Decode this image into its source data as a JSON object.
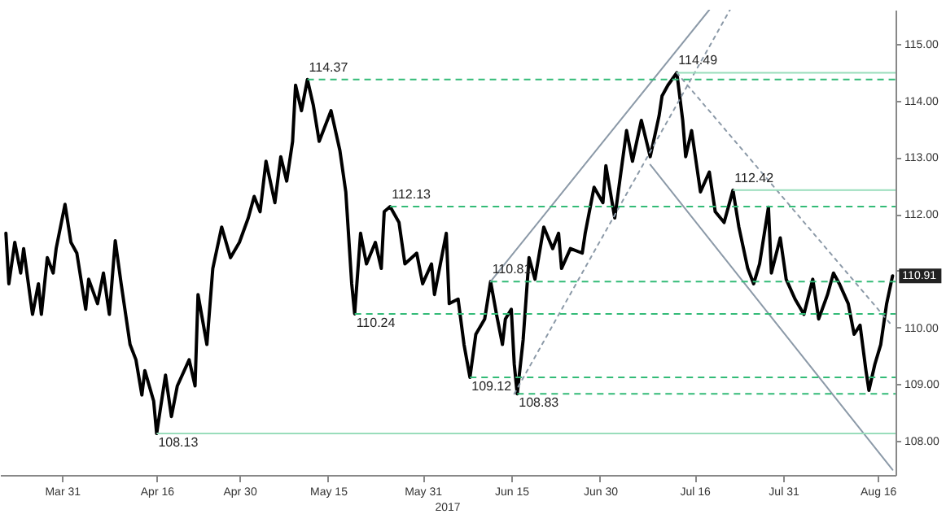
{
  "chart_data": {
    "type": "line",
    "x": [
      "2017-03-21T12:00",
      "2017-03-22",
      "2017-03-23",
      "2017-03-24",
      "2017-03-24T12:00",
      "2017-03-26",
      "2017-03-27",
      "2017-03-27T12:00",
      "2017-03-28T12:00",
      "2017-03-29T12:00",
      "2017-03-30",
      "2017-03-31T12:00",
      "2017-04-01T12:00",
      "2017-04-02T12:00",
      "2017-04-04",
      "2017-04-04T12:00",
      "2017-04-06",
      "2017-04-07",
      "2017-04-08",
      "2017-04-09",
      "2017-04-10",
      "2017-04-11T12:00",
      "2017-04-12T12:00",
      "2017-04-13T12:00",
      "2017-04-14",
      "2017-04-15T12:00",
      "2017-04-16",
      "2017-04-17T12:00",
      "2017-04-18T12:00",
      "2017-04-19T12:00",
      "2017-04-21T12:00",
      "2017-04-22T12:00",
      "2017-04-23",
      "2017-04-24T12:00",
      "2017-04-25T12:00",
      "2017-04-27",
      "2017-04-28T12:00",
      "2017-04-30",
      "2017-05-01T12:00",
      "2017-05-02T12:00",
      "2017-05-03T12:00",
      "2017-05-04T12:00",
      "2017-05-06",
      "2017-05-07",
      "2017-05-08",
      "2017-05-09",
      "2017-05-09T12:00",
      "2017-05-10T12:00",
      "2017-05-11T12:00",
      "2017-05-12T12:00",
      "2017-05-13T12:00",
      "2017-05-15T12:00",
      "2017-05-17",
      "2017-05-18",
      "2017-05-19",
      "2017-05-19T12:00",
      "2017-05-20T12:00",
      "2017-05-21T12:00",
      "2017-05-23",
      "2017-05-24",
      "2017-05-24T12:00",
      "2017-05-25T12:00",
      "2017-05-27",
      "2017-05-28",
      "2017-05-30",
      "2017-05-31",
      "2017-06-01T12:00",
      "2017-06-02",
      "2017-06-04",
      "2017-06-04T12:00",
      "2017-06-06",
      "2017-06-07",
      "2017-06-08",
      "2017-06-09",
      "2017-06-10T12:00",
      "2017-06-11T12:00",
      "2017-06-12T12:00",
      "2017-06-13T12:00",
      "2017-06-14",
      "2017-06-15",
      "2017-06-15T12:00",
      "2017-06-16",
      "2017-06-17",
      "2017-06-18",
      "2017-06-19",
      "2017-06-20T12:00",
      "2017-06-22",
      "2017-06-23",
      "2017-06-23T12:00",
      "2017-06-25",
      "2017-06-27",
      "2017-06-27T12:00",
      "2017-06-29",
      "2017-06-30T12:00",
      "2017-07-01",
      "2017-07-02T12:00",
      "2017-07-04T12:00",
      "2017-07-05T12:00",
      "2017-07-07",
      "2017-07-08T12:00",
      "2017-07-10",
      "2017-07-10T12:00",
      "2017-07-11T12:00",
      "2017-07-13",
      "2017-07-14",
      "2017-07-14T12:00",
      "2017-07-15T12:00",
      "2017-07-17",
      "2017-07-18T12:00",
      "2017-07-19T12:00",
      "2017-07-21",
      "2017-07-22T12:00",
      "2017-07-23T12:00",
      "2017-07-25",
      "2017-07-26",
      "2017-07-27",
      "2017-07-28T12:00",
      "2017-07-29",
      "2017-07-30T12:00",
      "2017-07-31T12:00",
      "2017-08-02",
      "2017-08-03T12:00",
      "2017-08-05",
      "2017-08-06",
      "2017-08-07T12:00",
      "2017-08-08T12:00",
      "2017-08-09T12:00",
      "2017-08-11",
      "2017-08-12",
      "2017-08-13",
      "2017-08-14",
      "2017-08-14T12:00",
      "2017-08-15T12:00",
      "2017-08-16T12:00",
      "2017-08-17T12:00",
      "2017-08-18T12:00"
    ],
    "series": [
      {
        "color": "#000000",
        "values": [
          111.66,
          110.77,
          111.5,
          110.96,
          111.39,
          110.23,
          110.77,
          110.23,
          111.23,
          110.96,
          111.39,
          112.17,
          111.5,
          111.31,
          110.32,
          110.85,
          110.42,
          110.96,
          110.23,
          111.53,
          110.77,
          109.7,
          109.43,
          108.81,
          109.24,
          108.7,
          108.13,
          109.16,
          108.43,
          108.97,
          109.43,
          108.97,
          110.58,
          109.7,
          111.04,
          111.77,
          111.23,
          111.5,
          111.93,
          112.31,
          112.04,
          112.93,
          112.2,
          113.01,
          112.58,
          113.28,
          114.27,
          113.82,
          114.37,
          113.92,
          113.28,
          113.82,
          113.12,
          112.39,
          110.77,
          110.24,
          111.66,
          111.12,
          111.5,
          111.04,
          112.04,
          112.13,
          111.85,
          111.12,
          111.31,
          110.77,
          111.12,
          110.58,
          111.66,
          110.42,
          110.5,
          109.7,
          109.12,
          109.88,
          110.15,
          110.81,
          110.23,
          109.7,
          110.15,
          110.32,
          109.35,
          108.83,
          109.78,
          111.23,
          110.85,
          111.77,
          111.39,
          111.66,
          111.04,
          111.39,
          111.31,
          111.66,
          112.47,
          112.2,
          112.85,
          111.93,
          113.47,
          112.93,
          113.65,
          113.01,
          113.73,
          114.08,
          114.27,
          114.49,
          113.65,
          113.01,
          113.47,
          112.39,
          112.74,
          112.04,
          111.85,
          112.42,
          111.77,
          111.04,
          110.77,
          111.12,
          112.12,
          110.96,
          111.58,
          110.85,
          110.5,
          110.23,
          110.85,
          110.15,
          110.58,
          110.96,
          110.77,
          110.42,
          109.88,
          110.04,
          109.24,
          108.89,
          109.35,
          109.7,
          110.42,
          110.91
        ]
      },
      {
        "type": "line",
        "color": "#8c9aa8",
        "line_style": "solid",
        "x": [
          "2017-06-11T12:00",
          "2017-07-18T12:00"
        ],
        "values": [
          110.81,
          115.6
        ]
      },
      {
        "type": "line",
        "color": "#8c9aa8",
        "line_style": "solid",
        "x": [
          "2017-07-08T12:00",
          "2017-08-18T12:00"
        ],
        "values": [
          112.87,
          107.49
        ]
      },
      {
        "type": "line",
        "color": "#8c9aa8",
        "line_style": "dotted",
        "x": [
          "2017-06-15T12:00",
          "2017-07-22"
        ],
        "values": [
          108.83,
          115.6
        ]
      },
      {
        "type": "line",
        "color": "#8c9aa8",
        "line_style": "dotted",
        "x": [
          "2017-07-13",
          "2017-08-18T12:00"
        ],
        "values": [
          114.49,
          110.02
        ]
      }
    ],
    "xlim": [
      "2017-03-20T12:00",
      "2017-08-19"
    ],
    "xticks": [
      {
        "value": "2017-03-31",
        "label": "Mar 31"
      },
      {
        "value": "2017-04-16",
        "label": "Apr 16"
      },
      {
        "value": "2017-04-30",
        "label": "Apr 30"
      },
      {
        "value": "2017-05-15",
        "label": "May 15"
      },
      {
        "value": "2017-05-31",
        "label": "May 31"
      },
      {
        "value": "2017-06-15",
        "label": "Jun 15"
      },
      {
        "value": "2017-06-30",
        "label": "Jun 30"
      },
      {
        "value": "2017-07-16",
        "label": "Jul 16"
      },
      {
        "value": "2017-07-31",
        "label": "Jul 31"
      },
      {
        "value": "2017-08-16",
        "label": "Aug 16"
      }
    ],
    "ylim": [
      107.4,
      115.6
    ],
    "yticks": [
      {
        "value": 108,
        "label": "108.00"
      },
      {
        "value": 109,
        "label": "109.00"
      },
      {
        "value": 110,
        "label": "110.00"
      },
      {
        "value": 111,
        "label": null
      },
      {
        "value": 112,
        "label": "112.00"
      },
      {
        "value": 113,
        "label": "113.00"
      },
      {
        "value": 114,
        "label": "114.00"
      },
      {
        "value": 115,
        "label": "115.00"
      }
    ],
    "ref_lines": [
      {
        "axis": "y",
        "value": 114.37,
        "label": "114.37",
        "color": "#33bb77",
        "line_style": "dashed"
      },
      {
        "axis": "y",
        "value": 112.13,
        "label": "112.13",
        "color": "#33bb77",
        "line_style": "dashed"
      },
      {
        "axis": "y",
        "value": 110.81,
        "label": "110.81",
        "color": "#33bb77",
        "line_style": "dashed"
      },
      {
        "axis": "y",
        "value": 110.24,
        "label": "110.24",
        "color": "#33bb77",
        "line_style": "dashed"
      },
      {
        "axis": "y",
        "value": 109.12,
        "label": "109.12",
        "color": "#33bb77",
        "line_style": "dashed"
      },
      {
        "axis": "y",
        "value": 108.83,
        "label": "108.83",
        "color": "#33bb77",
        "line_style": "dashed"
      },
      {
        "axis": "y",
        "value": 108.13,
        "label": "108.13",
        "color": "#99ddbb",
        "line_style": "solid"
      },
      {
        "axis": "y",
        "value": 114.49,
        "label": "114.49",
        "color": "#99ddbb",
        "line_style": "solid"
      },
      {
        "axis": "y",
        "value": 112.42,
        "label": "112.42",
        "color": "#99ddbb",
        "line_style": "solid"
      }
    ],
    "annotations": [
      "2017",
      {
        "text": "110.91",
        "x": "2017-08-18T12:00",
        "y": 110.91
      }
    ],
    "grid": false
  }
}
